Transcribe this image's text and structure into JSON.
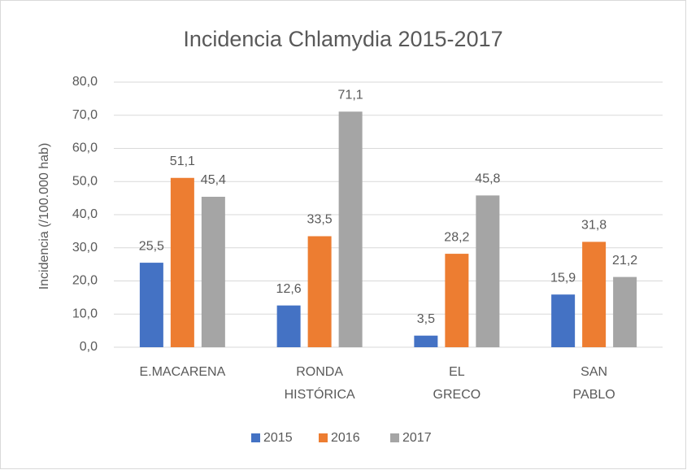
{
  "chart_data": {
    "type": "bar",
    "title": "Incidencia Chlamydia 2015-2017",
    "y_label": "Incidencia (/100.000 hab)",
    "categories": [
      "E.MACARENA",
      "RONDA HISTÓRICA",
      "EL GRECO",
      "SAN PABLO"
    ],
    "series": [
      {
        "name": "2015",
        "color": "#4472c4",
        "values": [
          25.5,
          12.6,
          3.5,
          15.9
        ],
        "value_labels": [
          "25,5",
          "12,6",
          "3,5",
          "15,9"
        ]
      },
      {
        "name": "2016",
        "color": "#ed7d31",
        "values": [
          51.1,
          33.5,
          28.2,
          31.8
        ],
        "value_labels": [
          "51,1",
          "33,5",
          "28,2",
          "31,8"
        ]
      },
      {
        "name": "2017",
        "color": "#a5a5a5",
        "values": [
          45.4,
          71.1,
          45.8,
          21.2
        ],
        "value_labels": [
          "45,4",
          "71,1",
          "45,8",
          "21,2"
        ]
      }
    ],
    "ylim": [
      0,
      80
    ],
    "yticks": [
      {
        "value": 0,
        "label": "0,0"
      },
      {
        "value": 10,
        "label": "10,0"
      },
      {
        "value": 20,
        "label": "20,0"
      },
      {
        "value": 30,
        "label": "30,0"
      },
      {
        "value": 40,
        "label": "40,0"
      },
      {
        "value": 50,
        "label": "50,0"
      },
      {
        "value": 60,
        "label": "60,0"
      },
      {
        "value": 70,
        "label": "70,0"
      },
      {
        "value": 80,
        "label": "80,0"
      }
    ],
    "grid": true,
    "legend": "bottom"
  }
}
